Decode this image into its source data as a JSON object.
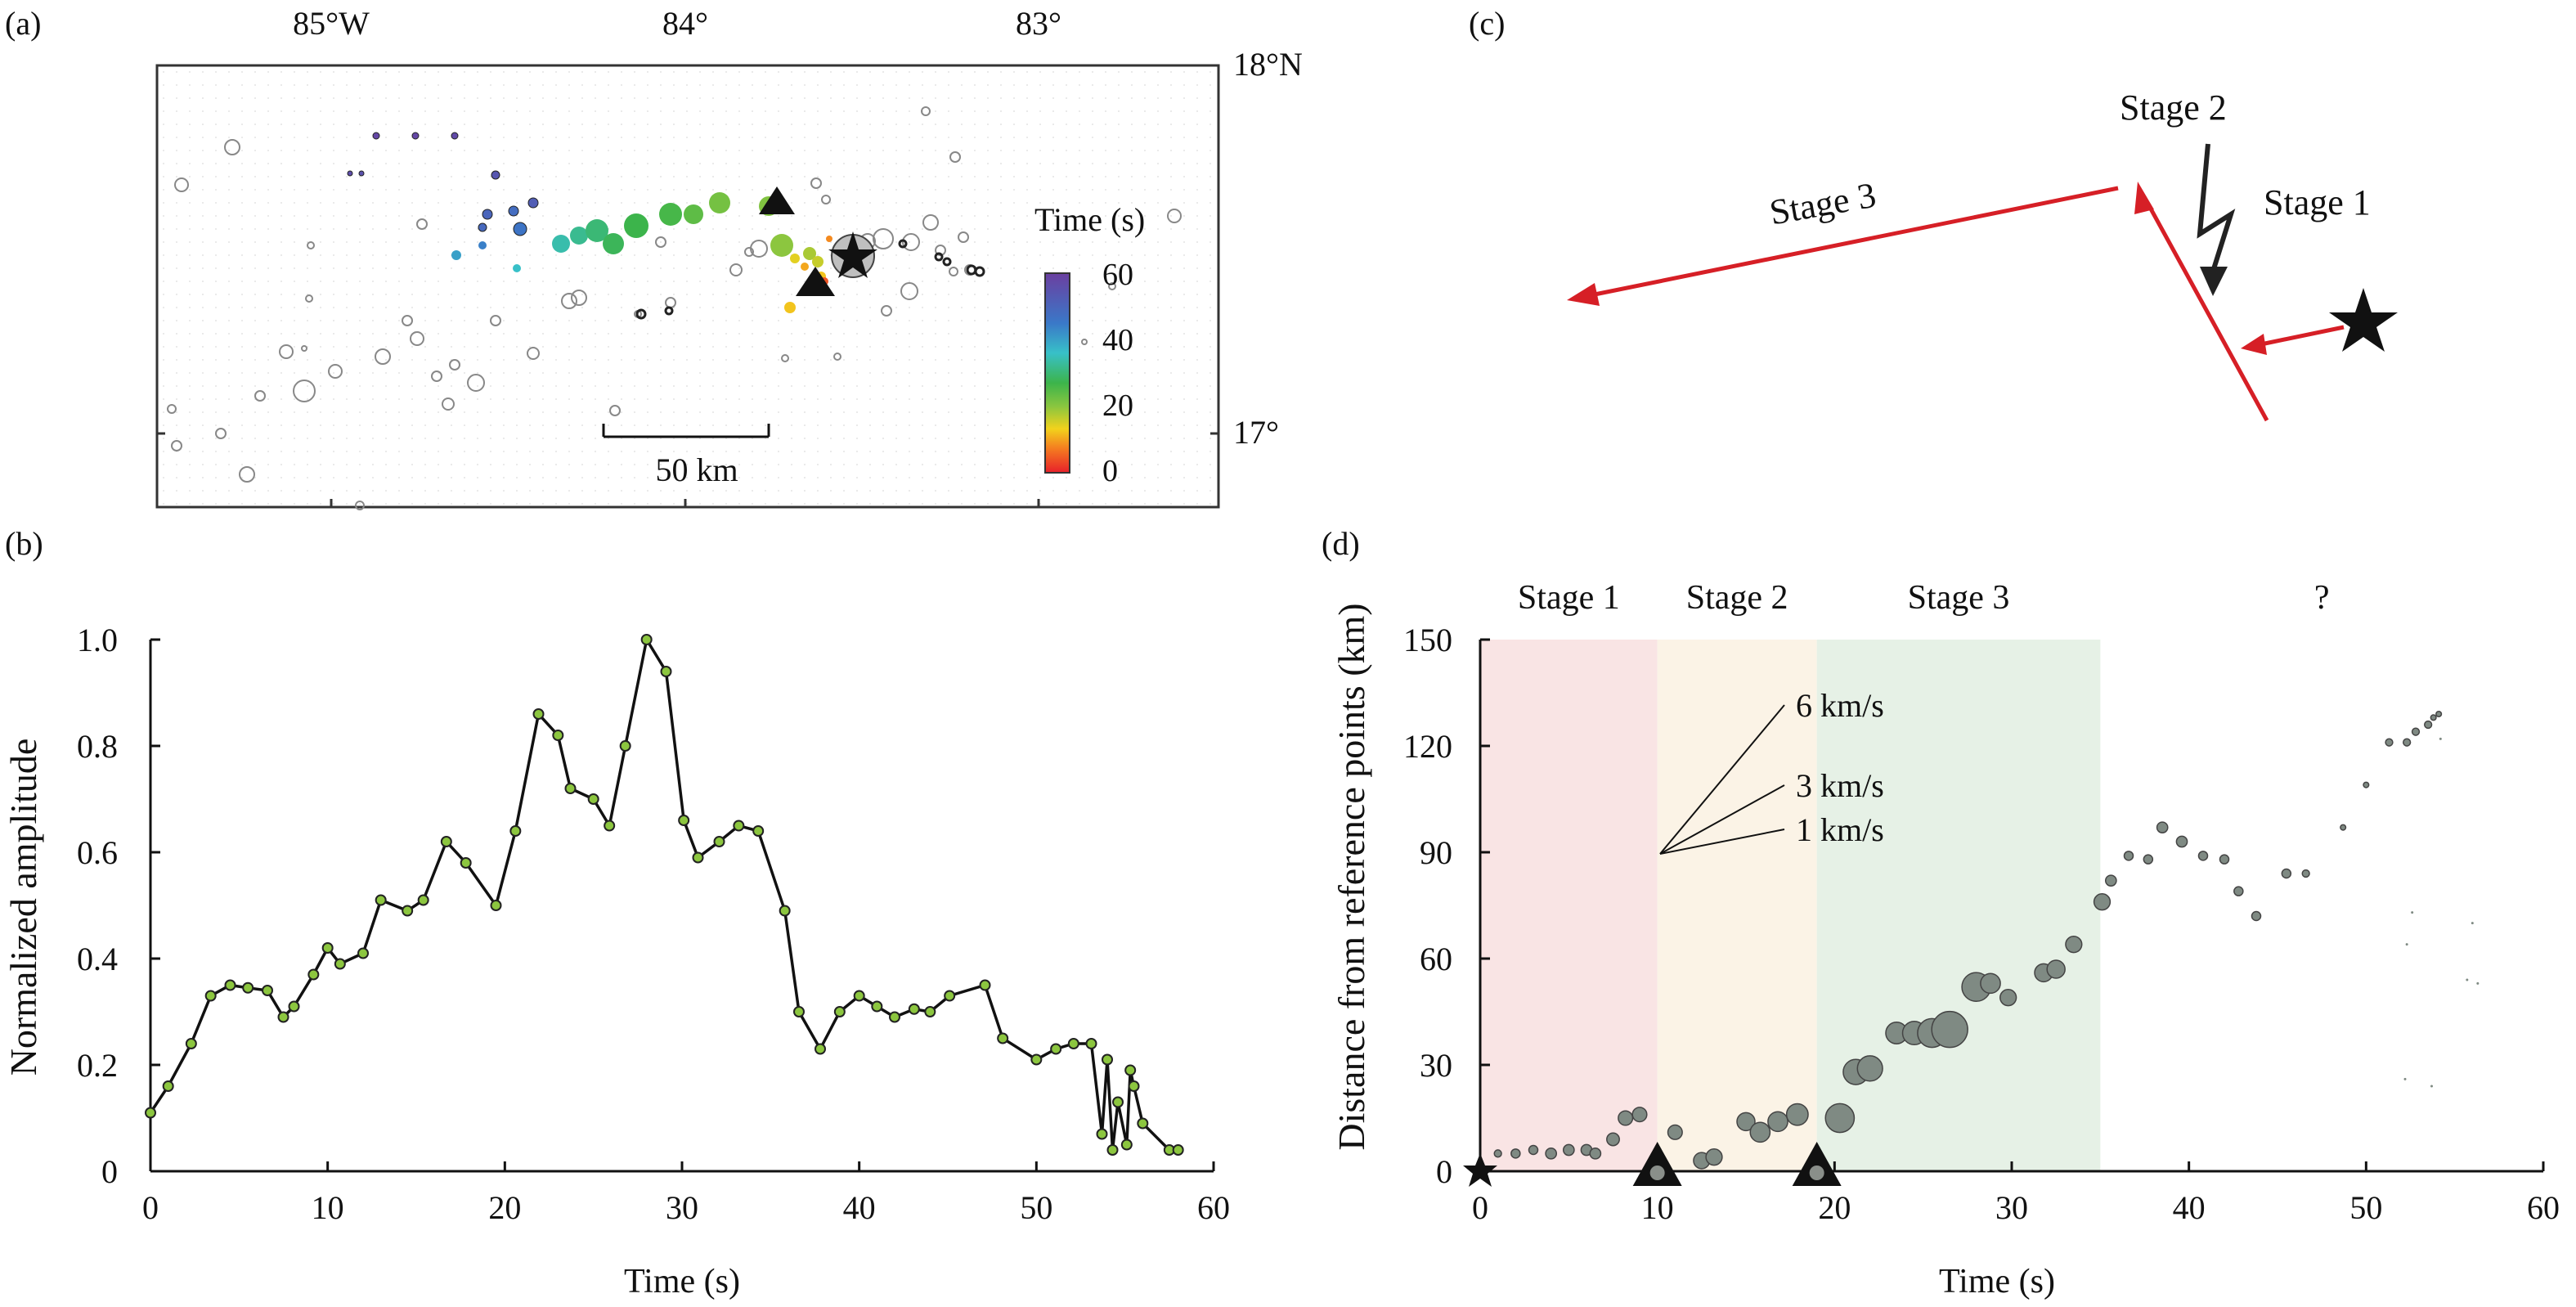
{
  "panels": {
    "a": "(a)",
    "b": "(b)",
    "c": "(c)",
    "d": "(d)"
  },
  "map": {
    "lon_labels": [
      "85°W",
      "84°",
      "83°"
    ],
    "lat_labels": [
      "18°N",
      "17°"
    ],
    "scalebar_label": "50 km",
    "colorbar_title": "Time (s)",
    "colorbar_ticks": [
      "60",
      "40",
      "20",
      "0"
    ],
    "hotspots": [
      {
        "t": 58
      },
      {
        "t": 58
      },
      {
        "t": 57
      },
      {
        "t": 56
      },
      {
        "t": 55
      },
      {
        "t": 54
      },
      {
        "t": 52
      },
      {
        "t": 50
      },
      {
        "t": 49
      },
      {
        "t": 48
      },
      {
        "t": 46
      },
      {
        "t": 44
      },
      {
        "t": 40
      },
      {
        "t": 36
      },
      {
        "t": 34
      },
      {
        "t": 32
      },
      {
        "t": 30
      },
      {
        "t": 28
      },
      {
        "t": 27
      },
      {
        "t": 26
      },
      {
        "t": 24
      },
      {
        "t": 22
      },
      {
        "t": 21
      },
      {
        "t": 20
      },
      {
        "t": 18
      },
      {
        "t": 16
      },
      {
        "t": 14
      },
      {
        "t": 12
      },
      {
        "t": 10
      },
      {
        "t": 8
      },
      {
        "t": 6
      },
      {
        "t": 4
      },
      {
        "t": 2
      }
    ]
  },
  "diagram": {
    "labels": [
      "Stage 1",
      "Stage 2",
      "Stage 3"
    ]
  },
  "chart_data": [
    {
      "type": "line",
      "xlabel": "Time (s)",
      "ylabel": "Normalized amplitude",
      "xlim": [
        0,
        60
      ],
      "ylim": [
        0,
        1.0
      ],
      "x_ticks": [
        "0",
        "10",
        "20",
        "30",
        "40",
        "50",
        "60"
      ],
      "y_ticks": [
        "0",
        "0.2",
        "0.4",
        "0.6",
        "0.8",
        "1.0"
      ],
      "x": [
        0,
        1,
        2.3,
        3.4,
        4.5,
        5.5,
        6.6,
        7.5,
        8.1,
        9.2,
        10,
        10.7,
        12,
        13,
        14.5,
        15.4,
        16.7,
        17.8,
        19.5,
        20.6,
        21.9,
        23,
        23.7,
        25,
        25.9,
        26.8,
        28,
        29.1,
        30.1,
        30.9,
        32.1,
        33.2,
        34.3,
        35.8,
        36.6,
        37.8,
        38.9,
        40,
        41,
        42,
        43.1,
        44,
        45.1,
        47.1,
        48.1,
        50,
        51.1,
        52.1,
        53.1,
        53.7,
        54,
        54.3,
        54.6,
        55.1,
        55.3,
        55.5,
        56,
        57.5,
        58
      ],
      "y": [
        0.11,
        0.16,
        0.24,
        0.33,
        0.35,
        0.345,
        0.34,
        0.29,
        0.31,
        0.37,
        0.42,
        0.39,
        0.41,
        0.51,
        0.49,
        0.51,
        0.62,
        0.58,
        0.5,
        0.64,
        0.86,
        0.82,
        0.72,
        0.7,
        0.65,
        0.8,
        1.0,
        0.94,
        0.66,
        0.59,
        0.62,
        0.65,
        0.64,
        0.49,
        0.3,
        0.23,
        0.3,
        0.33,
        0.31,
        0.29,
        0.305,
        0.3,
        0.33,
        0.35,
        0.25,
        0.21,
        0.23,
        0.24,
        0.24,
        0.07,
        0.21,
        0.04,
        0.13,
        0.05,
        0.19,
        0.16,
        0.09,
        0.04,
        0.04
      ]
    },
    {
      "type": "scatter",
      "xlabel": "Time (s)",
      "ylabel": "Distance from reference points (km)",
      "xlim": [
        0,
        60
      ],
      "ylim": [
        0,
        150
      ],
      "x_ticks": [
        "0",
        "10",
        "20",
        "30",
        "40",
        "50",
        "60"
      ],
      "y_ticks": [
        "0",
        "30",
        "60",
        "90",
        "120",
        "150"
      ],
      "stages": [
        {
          "label": "Stage 1",
          "start": 0,
          "end": 10,
          "color": "#f9e4e4"
        },
        {
          "label": "Stage 2",
          "start": 10,
          "end": 19,
          "color": "#fbf3e6"
        },
        {
          "label": "Stage 3",
          "start": 19,
          "end": 35,
          "color": "#e6f1e6"
        },
        {
          "label": "?",
          "start": 35,
          "end": 60,
          "color": ""
        }
      ],
      "velocity_lines": [
        {
          "label": "6 km/s",
          "speed": 6
        },
        {
          "label": "3 km/s",
          "speed": 3
        },
        {
          "label": "1 km/s",
          "speed": 1
        }
      ],
      "markers": [
        {
          "type": "star",
          "x": 0,
          "y": 0
        },
        {
          "type": "triangle",
          "x": 10,
          "y": 0
        },
        {
          "type": "triangle",
          "x": 19,
          "y": 0
        }
      ],
      "points": [
        {
          "x": 1,
          "y": 5,
          "s": 0.2
        },
        {
          "x": 2,
          "y": 5,
          "s": 0.25
        },
        {
          "x": 3,
          "y": 6,
          "s": 0.25
        },
        {
          "x": 4,
          "y": 5,
          "s": 0.3
        },
        {
          "x": 5,
          "y": 6,
          "s": 0.3
        },
        {
          "x": 6,
          "y": 6,
          "s": 0.3
        },
        {
          "x": 6.5,
          "y": 5,
          "s": 0.3
        },
        {
          "x": 7.5,
          "y": 9,
          "s": 0.35
        },
        {
          "x": 8.2,
          "y": 15,
          "s": 0.4
        },
        {
          "x": 9,
          "y": 16,
          "s": 0.4
        },
        {
          "x": 11,
          "y": 11,
          "s": 0.4
        },
        {
          "x": 12.5,
          "y": 3,
          "s": 0.45
        },
        {
          "x": 13.2,
          "y": 4,
          "s": 0.45
        },
        {
          "x": 15,
          "y": 14,
          "s": 0.5
        },
        {
          "x": 15.8,
          "y": 11,
          "s": 0.55
        },
        {
          "x": 16.8,
          "y": 14,
          "s": 0.55
        },
        {
          "x": 17.9,
          "y": 16,
          "s": 0.6
        },
        {
          "x": 20.3,
          "y": 15,
          "s": 0.8
        },
        {
          "x": 21.2,
          "y": 28,
          "s": 0.7
        },
        {
          "x": 22,
          "y": 29,
          "s": 0.7
        },
        {
          "x": 23.5,
          "y": 39,
          "s": 0.6
        },
        {
          "x": 24.5,
          "y": 39,
          "s": 0.65
        },
        {
          "x": 25.5,
          "y": 39,
          "s": 0.8
        },
        {
          "x": 26.5,
          "y": 40,
          "s": 1.0
        },
        {
          "x": 28,
          "y": 52,
          "s": 0.8
        },
        {
          "x": 28.8,
          "y": 53,
          "s": 0.55
        },
        {
          "x": 29.8,
          "y": 49,
          "s": 0.45
        },
        {
          "x": 31.8,
          "y": 56,
          "s": 0.5
        },
        {
          "x": 32.5,
          "y": 57,
          "s": 0.5
        },
        {
          "x": 33.5,
          "y": 64,
          "s": 0.45
        },
        {
          "x": 35.1,
          "y": 76,
          "s": 0.45
        },
        {
          "x": 35.6,
          "y": 82,
          "s": 0.3
        },
        {
          "x": 36.6,
          "y": 89,
          "s": 0.25
        },
        {
          "x": 37.7,
          "y": 88,
          "s": 0.25
        },
        {
          "x": 38.5,
          "y": 97,
          "s": 0.3
        },
        {
          "x": 39.6,
          "y": 93,
          "s": 0.3
        },
        {
          "x": 40.8,
          "y": 89,
          "s": 0.25
        },
        {
          "x": 42,
          "y": 88,
          "s": 0.25
        },
        {
          "x": 42.8,
          "y": 79,
          "s": 0.25
        },
        {
          "x": 43.8,
          "y": 72,
          "s": 0.25
        },
        {
          "x": 45.5,
          "y": 84,
          "s": 0.25
        },
        {
          "x": 46.6,
          "y": 84,
          "s": 0.2
        },
        {
          "x": 48.7,
          "y": 97,
          "s": 0.15
        },
        {
          "x": 50,
          "y": 109,
          "s": 0.15
        },
        {
          "x": 51.3,
          "y": 121,
          "s": 0.2
        },
        {
          "x": 52.3,
          "y": 121,
          "s": 0.2
        },
        {
          "x": 52.8,
          "y": 124,
          "s": 0.2
        },
        {
          "x": 53.5,
          "y": 126,
          "s": 0.2
        },
        {
          "x": 53.8,
          "y": 128,
          "s": 0.15
        },
        {
          "x": 54.1,
          "y": 129,
          "s": 0.15
        },
        {
          "x": 54.2,
          "y": 122,
          "s": 0.05
        },
        {
          "x": 52.6,
          "y": 73,
          "s": 0.05
        },
        {
          "x": 52.3,
          "y": 64,
          "s": 0.05
        },
        {
          "x": 56,
          "y": 70,
          "s": 0.05
        },
        {
          "x": 55.7,
          "y": 54,
          "s": 0.05
        },
        {
          "x": 56.3,
          "y": 53,
          "s": 0.05
        },
        {
          "x": 52.2,
          "y": 26,
          "s": 0.05
        },
        {
          "x": 53.7,
          "y": 24,
          "s": 0.05
        }
      ]
    }
  ]
}
